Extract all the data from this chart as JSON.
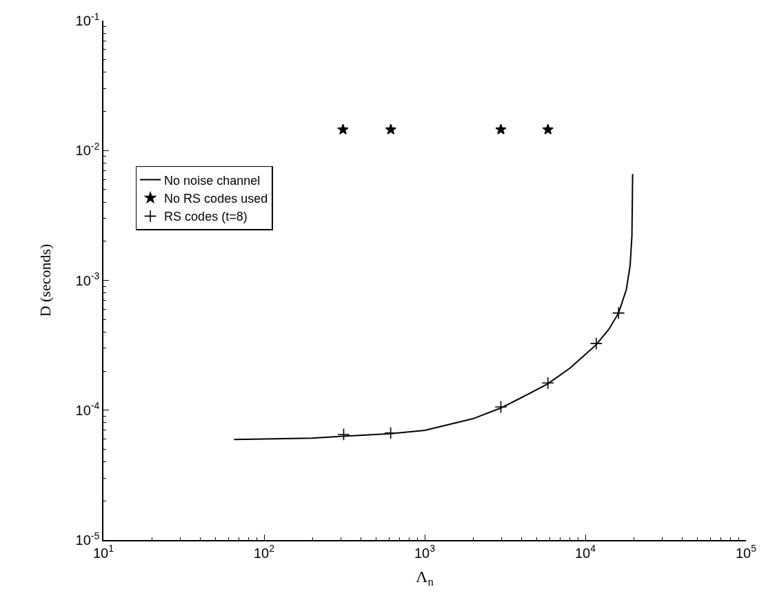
{
  "chart_data": {
    "type": "line",
    "xlabel": "Λ$_{n}$",
    "ylabel": "D (seconds)",
    "log": "xy",
    "legend": "left",
    "xlim": [
      10,
      100000
    ],
    "ylim": [
      1e-05,
      0.1
    ],
    "xticks": [
      {
        "value": 10,
        "label": "10$^{1}$"
      },
      {
        "value": 100,
        "label": "10$^{2}$"
      },
      {
        "value": 1000,
        "label": "10$^{3}$"
      },
      {
        "value": 10000,
        "label": "10$^{4}$"
      },
      {
        "value": 100000,
        "label": "10$^{5}$"
      }
    ],
    "yticks": [
      {
        "value": 1e-05,
        "label": "10$^{-5}$"
      },
      {
        "value": 0.0001,
        "label": "10$^{-4}$"
      },
      {
        "value": 0.001,
        "label": "10$^{-3}$"
      },
      {
        "value": 0.01,
        "label": "10$^{-2}$"
      },
      {
        "value": 0.1,
        "label": "10$^{-1}$"
      }
    ],
    "series": [
      {
        "name": "No noise channel",
        "type": "line",
        "color": "#000000",
        "marker": "none",
        "line_style": "solid",
        "x": [
          65,
          100,
          200,
          310,
          615,
          1000,
          2000,
          2980,
          4000,
          5850,
          8000,
          11700,
          14000,
          16100,
          18000,
          19000,
          19500,
          19700
        ],
        "values": [
          5.95e-05,
          6e-05,
          6.1e-05,
          6.3e-05,
          6.6e-05,
          7e-05,
          8.6e-05,
          0.000104,
          0.000125,
          0.00016,
          0.00021,
          0.00032,
          0.00042,
          0.00056,
          0.00085,
          0.0013,
          0.0022,
          0.0066
        ]
      },
      {
        "name": "No RS codes used",
        "type": "scatter",
        "color": "#000000",
        "marker": "star",
        "x": [
          310,
          615,
          2980,
          5850
        ],
        "values": [
          0.0145,
          0.0145,
          0.0145,
          0.0145
        ]
      },
      {
        "name": "RS codes (t=8)",
        "type": "scatter",
        "color": "#000000",
        "marker": "cross",
        "x": [
          313,
          614,
          2980,
          5850,
          11700,
          16100
        ],
        "values": [
          6.5e-05,
          6.67e-05,
          0.000106,
          0.000162,
          0.000326,
          0.00056
        ]
      }
    ]
  }
}
